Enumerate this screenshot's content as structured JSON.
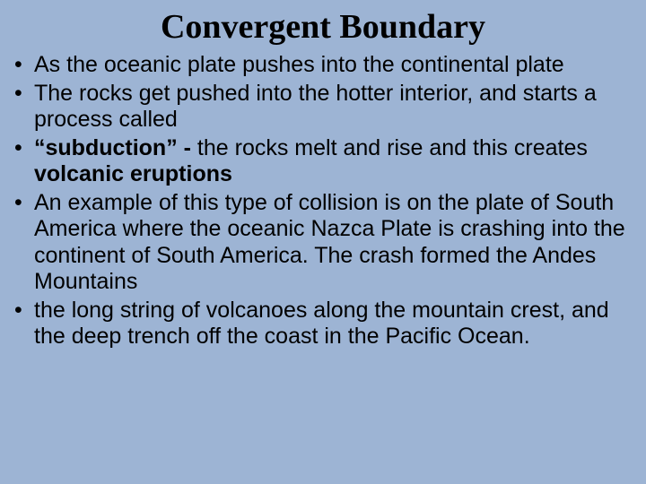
{
  "background_color": "#9db4d4",
  "text_color": "#000000",
  "title": {
    "text": "Convergent Boundary",
    "font_family": "Times New Roman",
    "font_size_pt": 38,
    "font_weight": "bold",
    "align": "center"
  },
  "body": {
    "font_family": "Arial",
    "font_size_pt": 25,
    "line_height": 1.18,
    "bullet_char": "•"
  },
  "bullets": [
    {
      "runs": [
        {
          "text": "As the oceanic plate pushes into the continental plate",
          "bold": false
        }
      ]
    },
    {
      "runs": [
        {
          "text": "The rocks get pushed into the hotter interior,  and starts a process called",
          "bold": false
        }
      ]
    },
    {
      "runs": [
        {
          "text": "“subduction” - ",
          "bold": true
        },
        {
          "text": "the rocks melt and rise and this creates ",
          "bold": false
        },
        {
          "text": "volcanic eruptions",
          "bold": true
        }
      ]
    },
    {
      "runs": [
        {
          "text": "An example of this type of collision is  on the plate of South America where the oceanic Nazca Plate is crashing into the continent of South America. The crash formed the Andes Mountains",
          "bold": false
        }
      ]
    },
    {
      "runs": [
        {
          "text": "the long string of volcanoes along the mountain crest, and the deep trench off the coast in the Pacific Ocean.",
          "bold": false
        }
      ]
    }
  ]
}
